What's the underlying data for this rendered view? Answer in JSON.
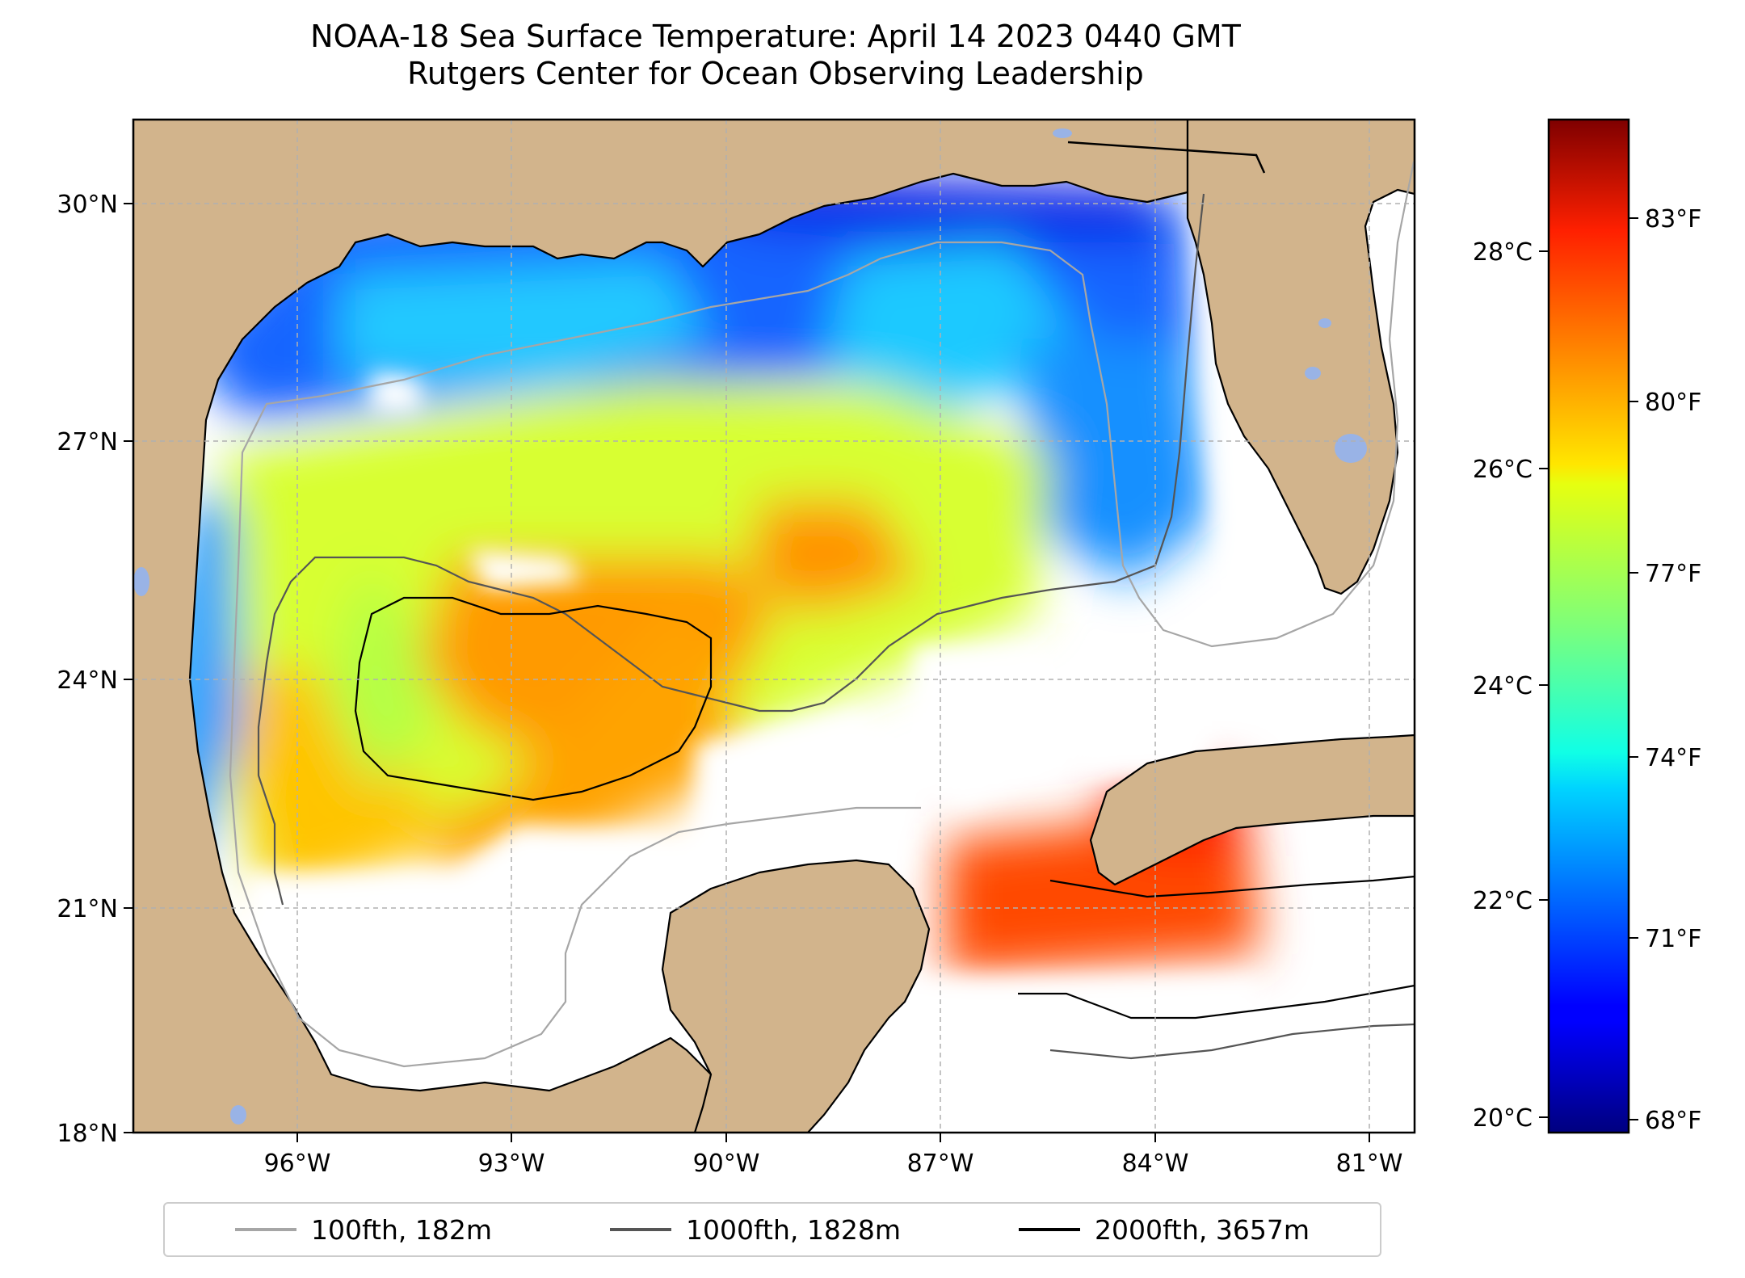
{
  "title": {
    "line1": "NOAA-18 Sea Surface Temperature: April 14 2023 0440 GMT",
    "line2": "Rutgers Center for Ocean Observing Leadership"
  },
  "map": {
    "lat_labels": [
      "30°N",
      "27°N",
      "24°N",
      "21°N",
      "18°N"
    ],
    "lon_labels": [
      "96°W",
      "93°W",
      "90°W",
      "87°W",
      "84°W",
      "81°W"
    ],
    "extent": {
      "lon": [
        -98.3,
        -80.5
      ],
      "lat": [
        18,
        31.2
      ]
    },
    "grid": true,
    "land_color": "#d2b48c",
    "ocean_no_data_color": "#ffffff",
    "inland_water_color": "#99b3e6"
  },
  "colorbar": {
    "colormap": "jet",
    "celsius_labels": [
      "28°C",
      "26°C",
      "24°C",
      "22°C",
      "20°C"
    ],
    "fahrenheit_labels": [
      "83°F",
      "80°F",
      "77°F",
      "74°F",
      "71°F",
      "68°F"
    ],
    "celsius_range": [
      19.8,
      29.2
    ]
  },
  "legend": {
    "items": [
      {
        "label": "100fth, 182m",
        "color": "#a6a6a6"
      },
      {
        "label": "1000fth, 1828m",
        "color": "#555555"
      },
      {
        "label": "2000fth, 3657m",
        "color": "#000000"
      }
    ]
  }
}
